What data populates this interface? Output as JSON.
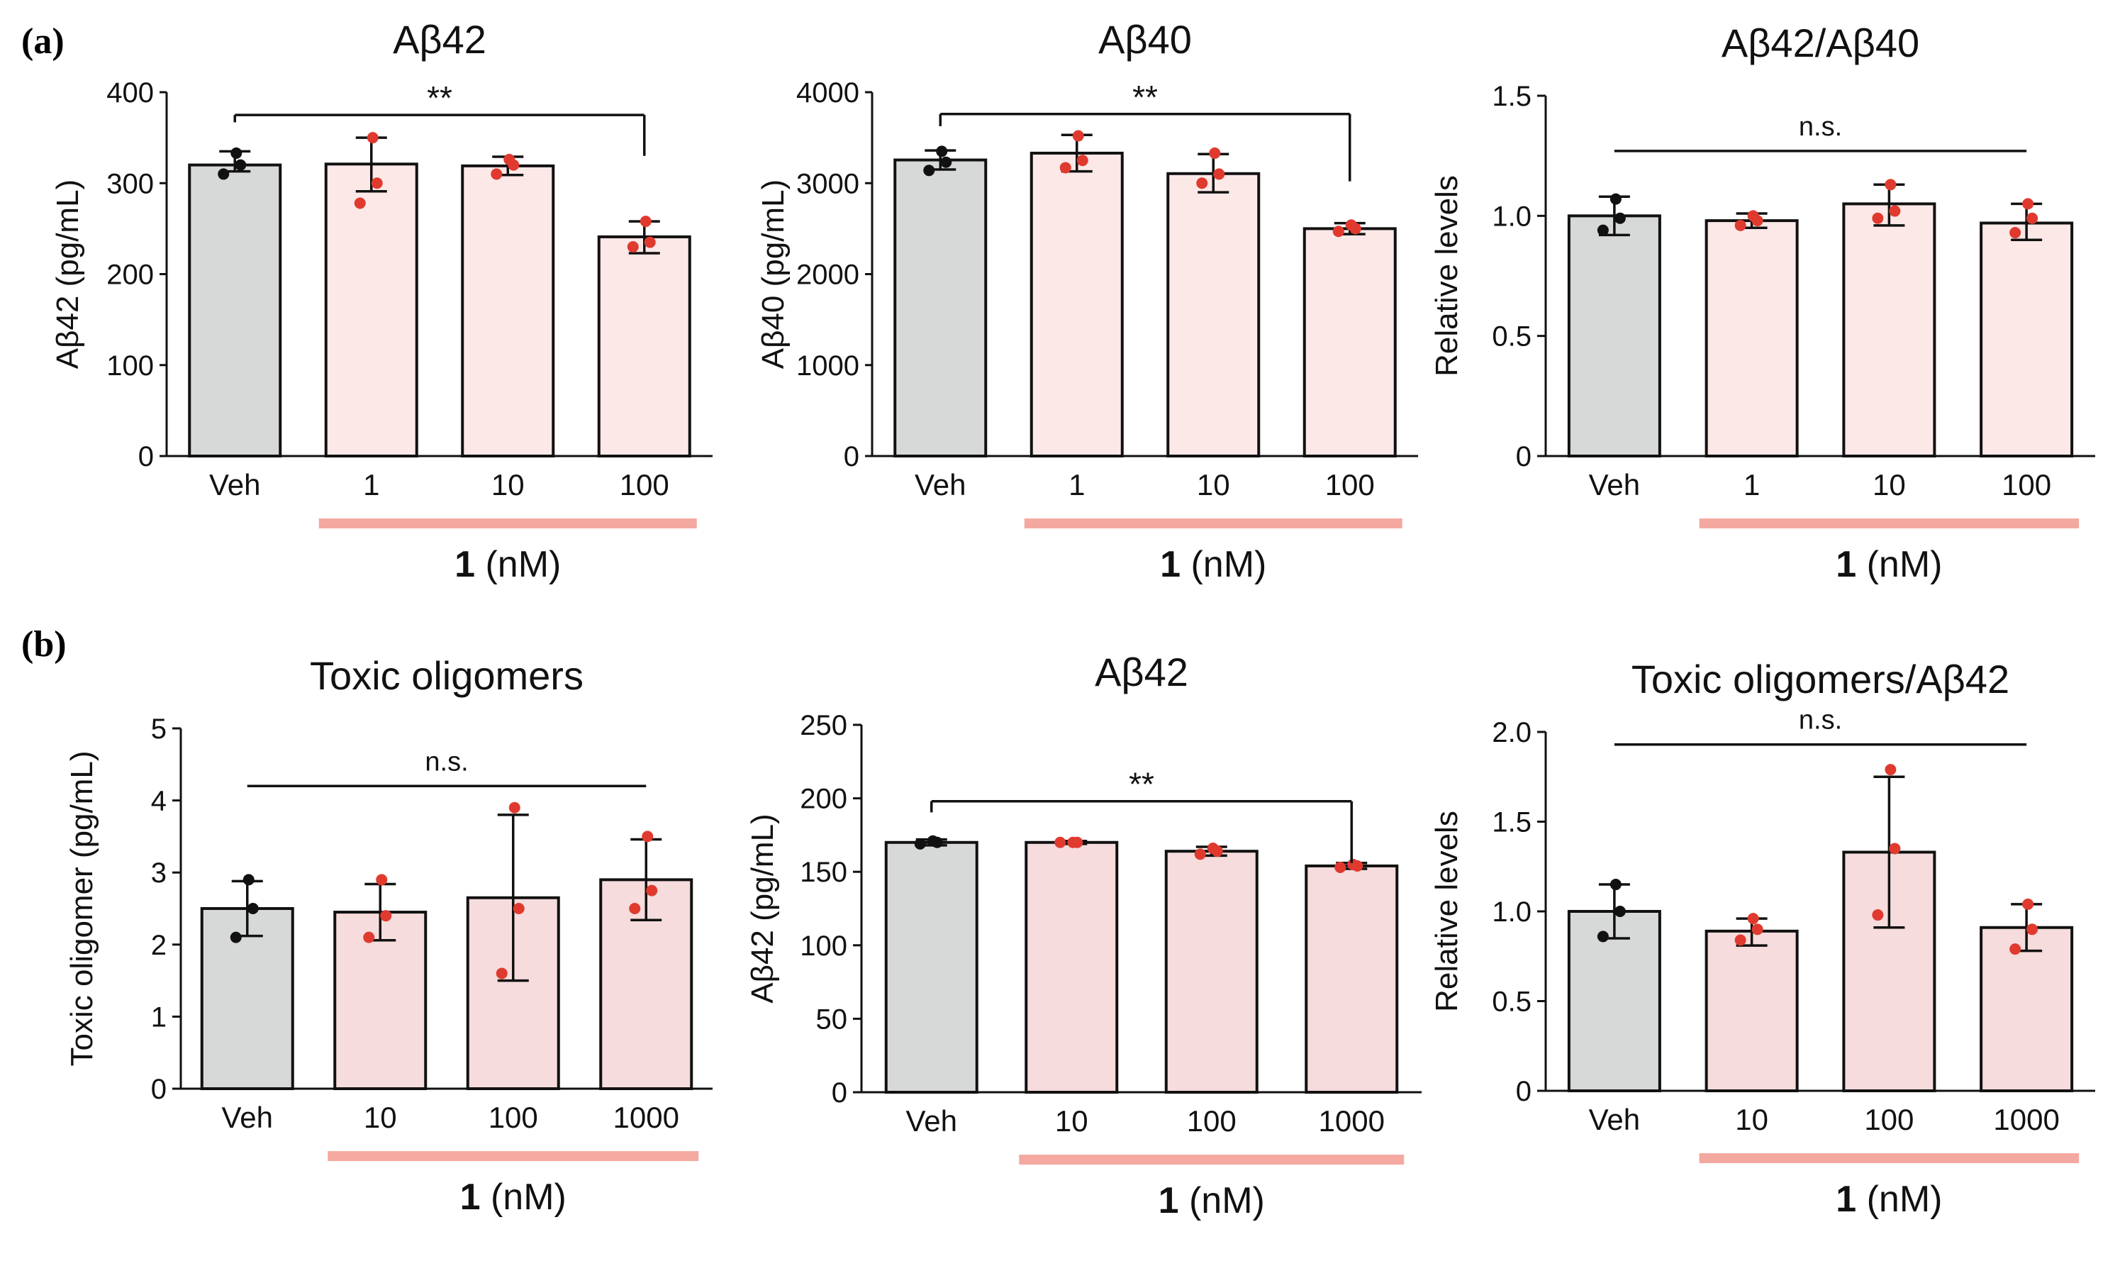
{
  "panel_labels": {
    "a": "(a)",
    "b": "(b)"
  },
  "colors": {
    "vehicle": "#d7d9d8",
    "compound": "#fde8e8",
    "compound_b": "#f6dcdc",
    "veh_dot": "#111111",
    "cmp_dot": "#e03a2f",
    "bracket": "#f4a9a0"
  },
  "chart_data": [
    {
      "type": "bar",
      "panel": "a",
      "title": "Aβ42",
      "ylabel": "Aβ42 (pg/mL)",
      "yticks": [
        "0",
        "100",
        "200",
        "300",
        "400"
      ],
      "ylim": [
        0,
        400
      ],
      "categories": [
        "Veh",
        "1",
        "10",
        "100"
      ],
      "values": [
        320,
        321,
        319,
        241
      ],
      "errors": [
        [
          313,
          335
        ],
        [
          291,
          350
        ],
        [
          309,
          329
        ],
        [
          223,
          258
        ]
      ],
      "points": [
        [
          310,
          320,
          333
        ],
        [
          278,
          300,
          350
        ],
        [
          310,
          320,
          326
        ],
        [
          230,
          235,
          258
        ]
      ],
      "xunit_bold": "1",
      "xunit": " (nM)",
      "annotation": {
        "text": "**",
        "from": 0,
        "to": 3,
        "y": 375,
        "drop": 45
      }
    },
    {
      "type": "bar",
      "panel": "a",
      "title": "Aβ40",
      "ylabel": "Aβ40 (pg/mL)",
      "yticks": [
        "0",
        "1000",
        "2000",
        "3000",
        "4000"
      ],
      "ylim": [
        0,
        4000
      ],
      "categories": [
        "Veh",
        "1",
        "10",
        "100"
      ],
      "values": [
        3255,
        3330,
        3105,
        2500
      ],
      "errors": [
        [
          3150,
          3360
        ],
        [
          3130,
          3530
        ],
        [
          2900,
          3320
        ],
        [
          2440,
          2560
        ]
      ],
      "points": [
        [
          3140,
          3230,
          3350
        ],
        [
          3170,
          3250,
          3520
        ],
        [
          3000,
          3100,
          3330
        ],
        [
          2470,
          2500,
          2540
        ]
      ],
      "xunit_bold": "1",
      "xunit": " (nM)",
      "annotation": {
        "text": "**",
        "from": 0,
        "to": 3,
        "y": 3760,
        "drop": 740
      }
    },
    {
      "type": "bar",
      "panel": "a",
      "title": "Aβ42/Aβ40",
      "ylabel": "Relative levels",
      "yticks": [
        "0",
        "0.5",
        "1.0",
        "1.5"
      ],
      "ylim": [
        0,
        1.5
      ],
      "categories": [
        "Veh",
        "1",
        "10",
        "100"
      ],
      "values": [
        1.0,
        0.98,
        1.05,
        0.97
      ],
      "errors": [
        [
          0.92,
          1.08
        ],
        [
          0.95,
          1.01
        ],
        [
          0.96,
          1.13
        ],
        [
          0.9,
          1.05
        ]
      ],
      "points": [
        [
          0.94,
          0.99,
          1.07
        ],
        [
          0.96,
          0.98,
          1.0
        ],
        [
          0.99,
          1.02,
          1.13
        ],
        [
          0.93,
          0.99,
          1.05
        ]
      ],
      "xunit_bold": "1",
      "xunit": " (nM)",
      "annotation": {
        "text": "n.s.",
        "from": 0,
        "to": 3,
        "y": 1.27,
        "drop": 0
      }
    },
    {
      "type": "bar",
      "panel": "b",
      "title": "Toxic oligomers",
      "ylabel": "Toxic oligomer (pg/mL)",
      "yticks": [
        "0",
        "1",
        "2",
        "3",
        "4",
        "5"
      ],
      "ylim": [
        0,
        5
      ],
      "categories": [
        "Veh",
        "10",
        "100",
        "1000"
      ],
      "values": [
        2.5,
        2.45,
        2.65,
        2.9
      ],
      "errors": [
        [
          2.12,
          2.88
        ],
        [
          2.06,
          2.84
        ],
        [
          1.5,
          3.8
        ],
        [
          2.34,
          3.46
        ]
      ],
      "points": [
        [
          2.1,
          2.5,
          2.9
        ],
        [
          2.1,
          2.4,
          2.9
        ],
        [
          1.6,
          2.5,
          3.9
        ],
        [
          2.5,
          2.75,
          3.5
        ]
      ],
      "xunit_bold": "1",
      "xunit": " (nM)",
      "annotation": {
        "text": "n.s.",
        "from": 0,
        "to": 3,
        "y": 4.2,
        "drop": 0
      }
    },
    {
      "type": "bar",
      "panel": "b",
      "title": "Aβ42",
      "ylabel": "Aβ42 (pg/mL)",
      "yticks": [
        "0",
        "50",
        "100",
        "150",
        "200",
        "250"
      ],
      "ylim": [
        0,
        250
      ],
      "categories": [
        "Veh",
        "10",
        "100",
        "1000"
      ],
      "values": [
        170,
        170,
        164,
        154
      ],
      "errors": [
        [
          168,
          172
        ],
        [
          169,
          171
        ],
        [
          161,
          167
        ],
        [
          152,
          156
        ]
      ],
      "points": [
        [
          169,
          170,
          171
        ],
        [
          170,
          170,
          170
        ],
        [
          162,
          164,
          166
        ],
        [
          153,
          154,
          155
        ]
      ],
      "xunit_bold": "1",
      "xunit": " (nM)",
      "annotation": {
        "text": "**",
        "from": 0,
        "to": 3,
        "y": 198,
        "drop": 42
      }
    },
    {
      "type": "bar",
      "panel": "b",
      "title": "Toxic oligomers/Aβ42",
      "ylabel": "Relative levels",
      "yticks": [
        "0",
        "0.5",
        "1.0",
        "1.5",
        "2.0"
      ],
      "ylim": [
        0,
        2.0
      ],
      "categories": [
        "Veh",
        "10",
        "100",
        "1000"
      ],
      "values": [
        1.0,
        0.89,
        1.33,
        0.91
      ],
      "errors": [
        [
          0.85,
          1.15
        ],
        [
          0.81,
          0.96
        ],
        [
          0.91,
          1.75
        ],
        [
          0.78,
          1.04
        ]
      ],
      "points": [
        [
          0.86,
          1.0,
          1.15
        ],
        [
          0.84,
          0.9,
          0.96
        ],
        [
          0.98,
          1.35,
          1.79
        ],
        [
          0.79,
          0.9,
          1.04
        ]
      ],
      "xunit_bold": "1",
      "xunit": " (nM)",
      "annotation": {
        "text": "n.s.",
        "from": 0,
        "to": 3,
        "y": 1.93,
        "drop": 0
      }
    }
  ]
}
